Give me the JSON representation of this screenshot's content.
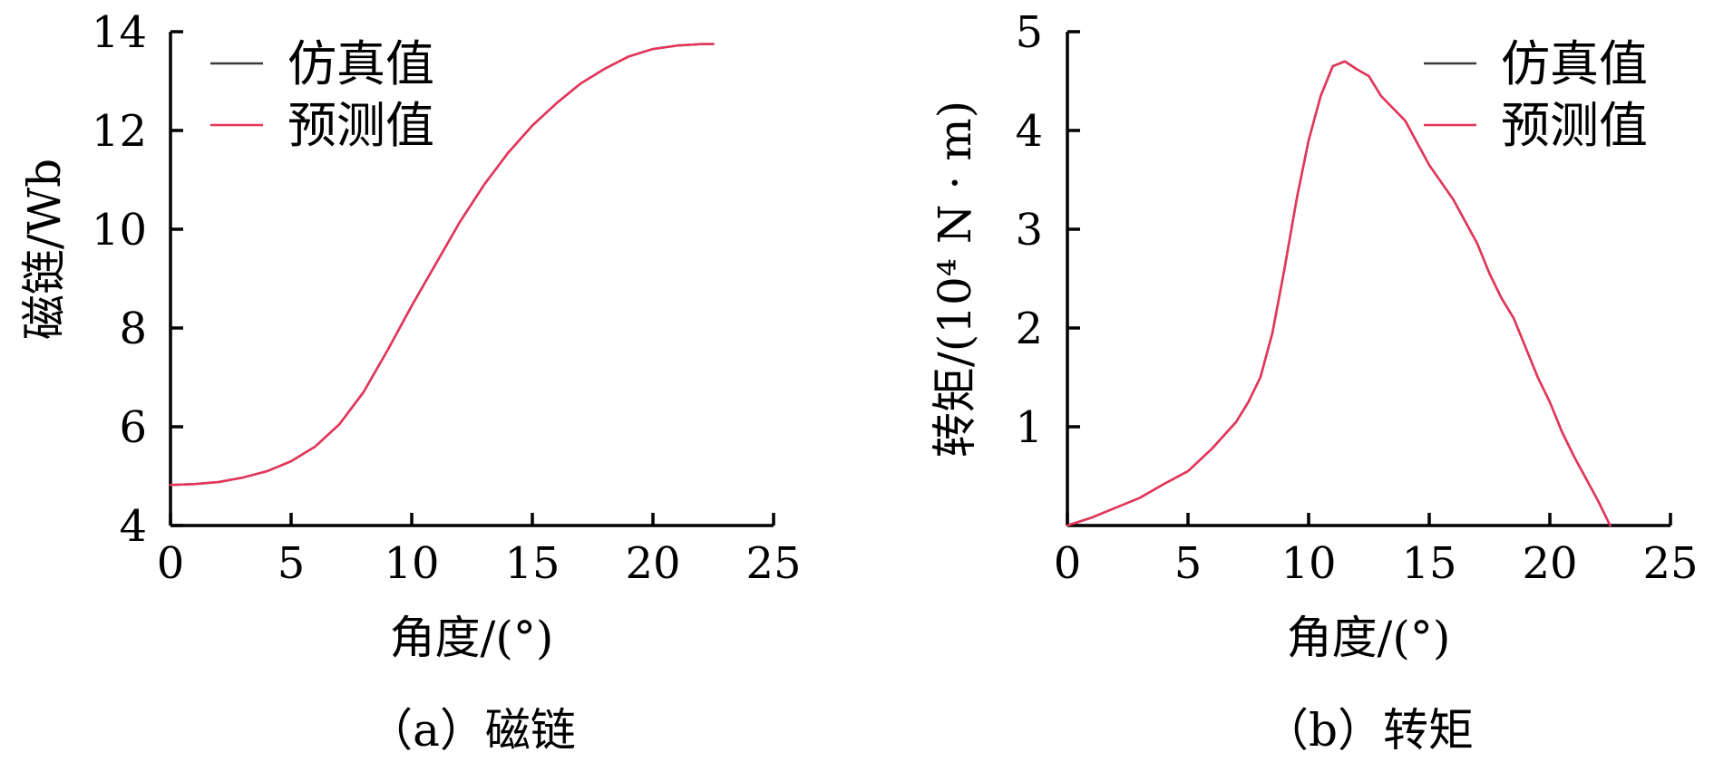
{
  "colors": {
    "simulated": "#3a3a3a",
    "predicted": "#e8345a",
    "axis": "#000000"
  },
  "chart_data": [
    {
      "type": "line",
      "xlabel": "角度/(°)",
      "ylabel": "磁链/Wb",
      "caption": "（a）磁链",
      "xlim": [
        0,
        25
      ],
      "ylim": [
        4,
        14
      ],
      "xticks": [
        "0",
        "5",
        "10",
        "15",
        "20",
        "25"
      ],
      "yticks": [
        "4",
        "6",
        "8",
        "10",
        "12",
        "14"
      ],
      "grid": false,
      "legend_position": "top-left",
      "series": [
        {
          "name": "仿真值",
          "color_key": "simulated",
          "x": [
            0,
            1,
            2,
            3,
            4,
            5,
            6,
            7,
            8,
            9,
            10,
            11,
            12,
            13,
            14,
            15,
            16,
            17,
            18,
            19,
            20,
            21,
            22,
            22.5
          ],
          "y": [
            4.82,
            4.84,
            4.88,
            4.97,
            5.1,
            5.3,
            5.6,
            6.05,
            6.7,
            7.55,
            8.45,
            9.3,
            10.15,
            10.9,
            11.55,
            12.1,
            12.55,
            12.95,
            13.25,
            13.5,
            13.65,
            13.72,
            13.75,
            13.75
          ]
        },
        {
          "name": "预测值",
          "color_key": "predicted",
          "x": [
            0,
            1,
            2,
            3,
            4,
            5,
            6,
            7,
            8,
            9,
            10,
            11,
            12,
            13,
            14,
            15,
            16,
            17,
            18,
            19,
            20,
            21,
            22,
            22.5
          ],
          "y": [
            4.82,
            4.84,
            4.88,
            4.97,
            5.1,
            5.3,
            5.6,
            6.05,
            6.7,
            7.55,
            8.45,
            9.3,
            10.15,
            10.9,
            11.55,
            12.1,
            12.55,
            12.95,
            13.25,
            13.5,
            13.65,
            13.72,
            13.75,
            13.75
          ]
        }
      ]
    },
    {
      "type": "line",
      "xlabel": "角度/(°)",
      "ylabel": "转矩/(10⁴ N · m)",
      "caption": "（b）转矩",
      "xlim": [
        0,
        25
      ],
      "ylim": [
        0,
        5
      ],
      "xticks": [
        "0",
        "5",
        "10",
        "15",
        "20",
        "25"
      ],
      "yticks": [
        "1",
        "2",
        "3",
        "4",
        "5"
      ],
      "grid": false,
      "legend_position": "top-right",
      "series": [
        {
          "name": "仿真值",
          "color_key": "simulated",
          "x": [
            0,
            1,
            2,
            3,
            4,
            5,
            6,
            7,
            7.5,
            8,
            8.5,
            9,
            9.5,
            10,
            10.5,
            11,
            11.5,
            12,
            12.5,
            13,
            14,
            15,
            16,
            17,
            17.5,
            18,
            18.5,
            19,
            19.5,
            20,
            20.5,
            21,
            22,
            22.5
          ],
          "y": [
            0,
            0.08,
            0.18,
            0.28,
            0.42,
            0.55,
            0.78,
            1.05,
            1.25,
            1.5,
            1.95,
            2.6,
            3.3,
            3.9,
            4.35,
            4.65,
            4.7,
            4.62,
            4.55,
            4.35,
            4.1,
            3.65,
            3.3,
            2.85,
            2.55,
            2.3,
            2.1,
            1.8,
            1.5,
            1.25,
            0.95,
            0.7,
            0.25,
            0.0
          ]
        },
        {
          "name": "预测值",
          "color_key": "predicted",
          "x": [
            0,
            1,
            2,
            3,
            4,
            5,
            6,
            7,
            7.5,
            8,
            8.5,
            9,
            9.5,
            10,
            10.5,
            11,
            11.5,
            12,
            12.5,
            13,
            14,
            15,
            16,
            17,
            17.5,
            18,
            18.5,
            19,
            19.5,
            20,
            20.5,
            21,
            22,
            22.5
          ],
          "y": [
            0,
            0.08,
            0.18,
            0.28,
            0.42,
            0.55,
            0.78,
            1.05,
            1.25,
            1.5,
            1.95,
            2.6,
            3.3,
            3.9,
            4.35,
            4.65,
            4.7,
            4.62,
            4.55,
            4.35,
            4.1,
            3.65,
            3.3,
            2.85,
            2.55,
            2.3,
            2.1,
            1.8,
            1.5,
            1.25,
            0.95,
            0.7,
            0.25,
            0.0
          ]
        }
      ]
    }
  ]
}
